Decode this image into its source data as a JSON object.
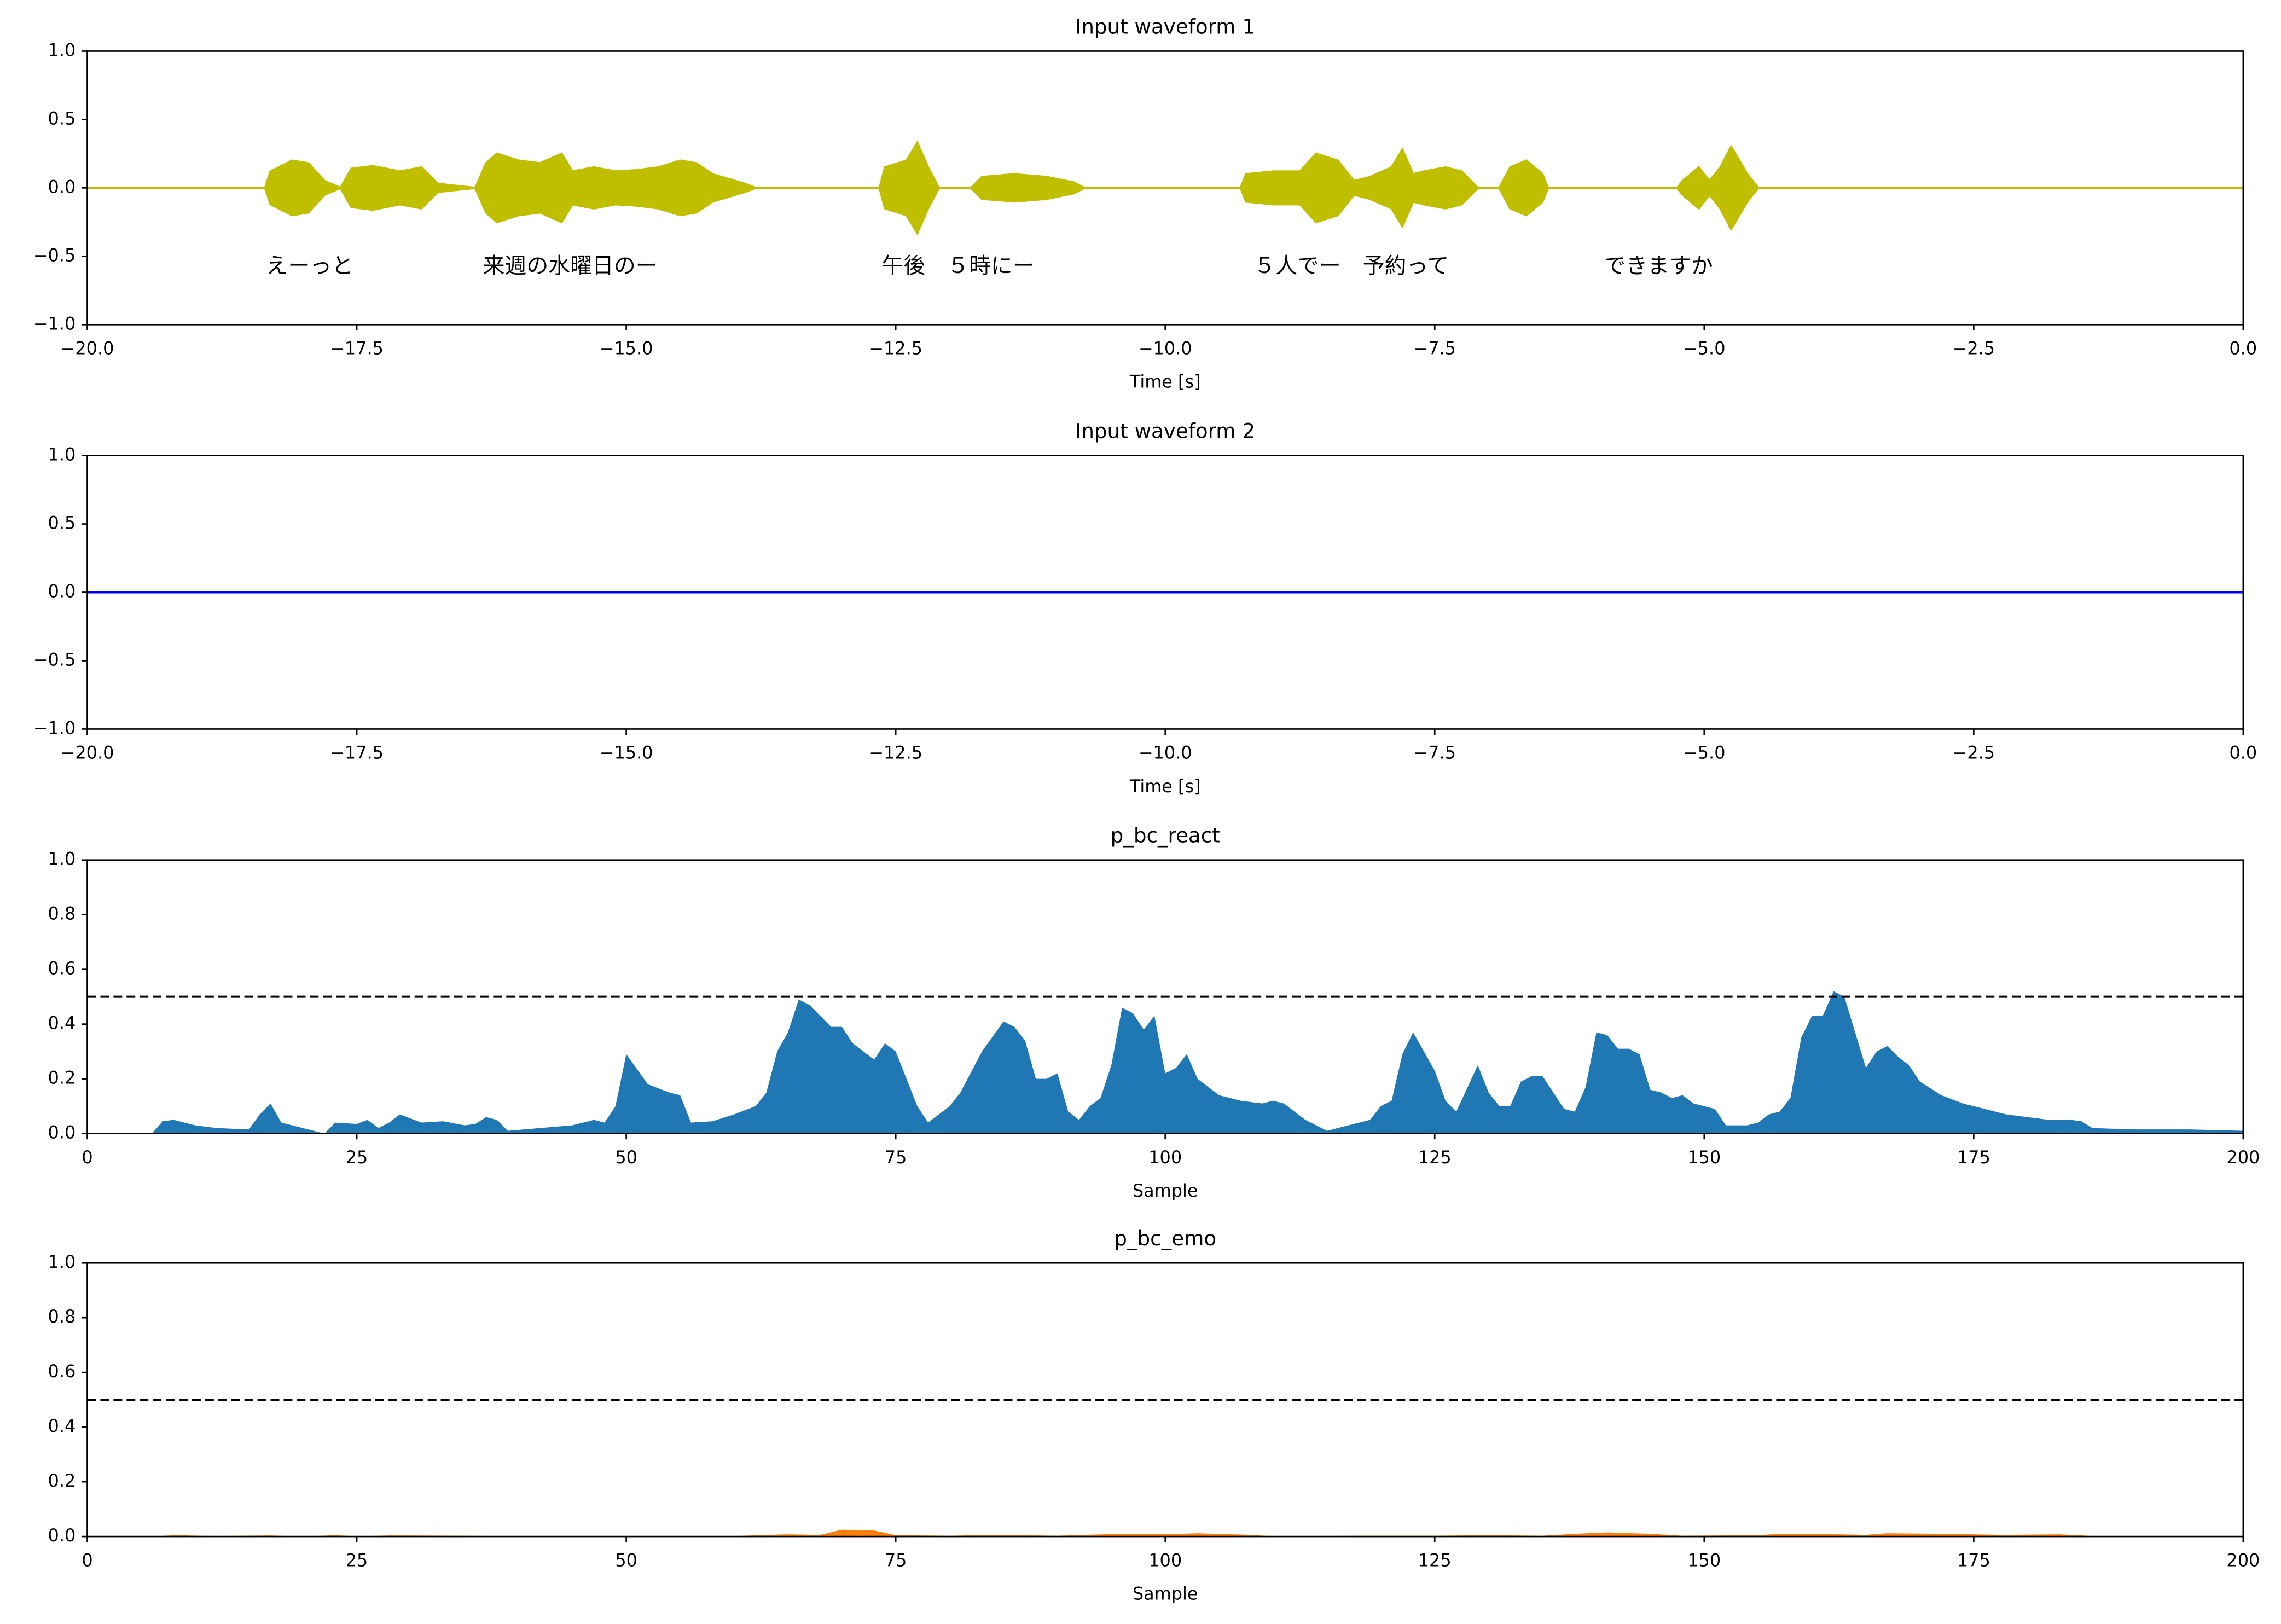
{
  "chart_data": [
    {
      "type": "waveform",
      "title": "Input waveform 1",
      "xlabel": "Time [s]",
      "color": "#bfbf00",
      "x": [
        -20,
        -18.35,
        -18.3,
        -18.1,
        -17.95,
        -17.8,
        -17.65,
        -17.55,
        -17.35,
        -17.1,
        -16.9,
        -16.75,
        -16.4,
        -16.3,
        -16.2,
        -16.0,
        -15.8,
        -15.6,
        -15.5,
        -15.3,
        -15.1,
        -14.9,
        -14.7,
        -14.5,
        -14.35,
        -14.2,
        -13.9,
        -13.8,
        -12.65,
        -12.6,
        -12.4,
        -12.3,
        -12.2,
        -12.1,
        -11.8,
        -11.7,
        -11.4,
        -11.1,
        -10.85,
        -10.75,
        -9.3,
        -9.25,
        -9.0,
        -8.75,
        -8.6,
        -8.4,
        -8.25,
        -8.1,
        -7.9,
        -7.8,
        -7.7,
        -7.6,
        -7.4,
        -7.25,
        -7.1,
        -6.9,
        -6.8,
        -6.65,
        -6.5,
        -6.45,
        -5.25,
        -5.2,
        -5.05,
        -4.95,
        -4.85,
        -4.75,
        -4.6,
        -4.5,
        0
      ],
      "values": [
        0,
        0,
        0.12,
        0.2,
        0.18,
        0.05,
        0,
        0.14,
        0.16,
        0.12,
        0.15,
        0.03,
        0,
        0.18,
        0.25,
        0.2,
        0.18,
        0.25,
        0.12,
        0.15,
        0.12,
        0.13,
        0.15,
        0.2,
        0.18,
        0.1,
        0.03,
        0,
        0,
        0.15,
        0.2,
        0.33,
        0.15,
        0,
        0,
        0.08,
        0.1,
        0.08,
        0.04,
        0,
        0,
        0.1,
        0.12,
        0.12,
        0.25,
        0.2,
        0.05,
        0.08,
        0.15,
        0.28,
        0.1,
        0.12,
        0.15,
        0.12,
        0,
        0,
        0.15,
        0.2,
        0.1,
        0,
        0,
        0.05,
        0.15,
        0.05,
        0.15,
        0.3,
        0.1,
        0,
        0
      ],
      "xlim": [
        -20,
        0
      ],
      "ylim": [
        -1,
        1
      ],
      "xticks": [
        {
          "value": -20,
          "label": "−20.0"
        },
        {
          "value": -17.5,
          "label": "−17.5"
        },
        {
          "value": -15,
          "label": "−15.0"
        },
        {
          "value": -12.5,
          "label": "−12.5"
        },
        {
          "value": -10,
          "label": "−10.0"
        },
        {
          "value": -7.5,
          "label": "−7.5"
        },
        {
          "value": -5,
          "label": "−5.0"
        },
        {
          "value": -2.5,
          "label": "−2.5"
        },
        {
          "value": 0,
          "label": "0.0"
        }
      ],
      "yticks": [
        {
          "value": -1,
          "label": "−1.0"
        },
        {
          "value": -0.5,
          "label": "−0.5"
        },
        {
          "value": 0,
          "label": "0.0"
        },
        {
          "value": 0.5,
          "label": "0.5"
        },
        {
          "value": 1,
          "label": "1.0"
        }
      ],
      "annotations": [
        {
          "text": "えーっと",
          "x": -18.34,
          "y": -0.58
        },
        {
          "text": "来週の水曜日のー",
          "x": -16.33,
          "y": -0.58
        },
        {
          "text": "午後　５時にー",
          "x": -12.63,
          "y": -0.58
        },
        {
          "text": "５人でー　予約って",
          "x": -9.18,
          "y": -0.58
        },
        {
          "text": "できますか",
          "x": -5.93,
          "y": -0.58
        }
      ]
    },
    {
      "type": "line",
      "title": "Input waveform 2",
      "xlabel": "Time [s]",
      "color": "#0000ff",
      "x": [
        -20,
        0
      ],
      "values": [
        0,
        0
      ],
      "xlim": [
        -20,
        0
      ],
      "ylim": [
        -1,
        1
      ],
      "xticks": [
        {
          "value": -20,
          "label": "−20.0"
        },
        {
          "value": -17.5,
          "label": "−17.5"
        },
        {
          "value": -15,
          "label": "−15.0"
        },
        {
          "value": -12.5,
          "label": "−12.5"
        },
        {
          "value": -10,
          "label": "−10.0"
        },
        {
          "value": -7.5,
          "label": "−7.5"
        },
        {
          "value": -5,
          "label": "−5.0"
        },
        {
          "value": -2.5,
          "label": "−2.5"
        },
        {
          "value": 0,
          "label": "0.0"
        }
      ],
      "yticks": [
        {
          "value": -1,
          "label": "−1.0"
        },
        {
          "value": -0.5,
          "label": "−0.5"
        },
        {
          "value": 0,
          "label": "0.0"
        },
        {
          "value": 0.5,
          "label": "0.5"
        },
        {
          "value": 1,
          "label": "1.0"
        }
      ]
    },
    {
      "type": "area",
      "title": "p_bc_react",
      "xlabel": "Sample",
      "color": "#1f77b4",
      "threshold": 0.5,
      "x": [
        0,
        6,
        7,
        8,
        10,
        12,
        15,
        16,
        17,
        18,
        20,
        21,
        22,
        23,
        25,
        26,
        27,
        28,
        29,
        31,
        33,
        35,
        36,
        37,
        38,
        39,
        42,
        45,
        47,
        48,
        49,
        50,
        52,
        54,
        55,
        56,
        58,
        60,
        62,
        63,
        64,
        65,
        66,
        67,
        69,
        70,
        71,
        73,
        74,
        75,
        76,
        77,
        78,
        79,
        80,
        81,
        83,
        85,
        86,
        87,
        88,
        89,
        90,
        91,
        92,
        93,
        94,
        95,
        96,
        97,
        98,
        99,
        100,
        101,
        102,
        103,
        105,
        107,
        109,
        110,
        111,
        113,
        115,
        117,
        119,
        120,
        121,
        122,
        123,
        125,
        126,
        127,
        129,
        130,
        131,
        132,
        133,
        134,
        135,
        136,
        137,
        138,
        139,
        140,
        141,
        142,
        143,
        144,
        145,
        146,
        147,
        148,
        149,
        150,
        151,
        152,
        154,
        155,
        156,
        157,
        158,
        159,
        160,
        161,
        162,
        163,
        164,
        165,
        166,
        167,
        168,
        169,
        170,
        172,
        174,
        176,
        178,
        180,
        182,
        184,
        185,
        186,
        190,
        195,
        200
      ],
      "values": [
        0,
        0,
        0.045,
        0.05,
        0.03,
        0.02,
        0.015,
        0.07,
        0.11,
        0.04,
        0.02,
        0.01,
        0,
        0.04,
        0.035,
        0.05,
        0.02,
        0.04,
        0.07,
        0.04,
        0.045,
        0.03,
        0.035,
        0.06,
        0.05,
        0.01,
        0.02,
        0.03,
        0.05,
        0.04,
        0.1,
        0.29,
        0.18,
        0.15,
        0.14,
        0.04,
        0.045,
        0.07,
        0.1,
        0.15,
        0.3,
        0.37,
        0.49,
        0.47,
        0.39,
        0.39,
        0.33,
        0.27,
        0.33,
        0.3,
        0.2,
        0.1,
        0.04,
        0.07,
        0.1,
        0.15,
        0.3,
        0.41,
        0.39,
        0.34,
        0.2,
        0.2,
        0.22,
        0.08,
        0.05,
        0.1,
        0.13,
        0.25,
        0.46,
        0.44,
        0.38,
        0.43,
        0.22,
        0.24,
        0.29,
        0.2,
        0.14,
        0.12,
        0.11,
        0.12,
        0.11,
        0.05,
        0.01,
        0.03,
        0.05,
        0.1,
        0.12,
        0.29,
        0.37,
        0.23,
        0.12,
        0.08,
        0.25,
        0.15,
        0.1,
        0.1,
        0.19,
        0.21,
        0.21,
        0.15,
        0.09,
        0.08,
        0.17,
        0.37,
        0.36,
        0.31,
        0.31,
        0.29,
        0.16,
        0.15,
        0.13,
        0.14,
        0.11,
        0.1,
        0.09,
        0.03,
        0.03,
        0.04,
        0.07,
        0.08,
        0.13,
        0.35,
        0.43,
        0.43,
        0.52,
        0.5,
        0.37,
        0.24,
        0.3,
        0.32,
        0.28,
        0.25,
        0.19,
        0.14,
        0.11,
        0.09,
        0.07,
        0.06,
        0.05,
        0.05,
        0.045,
        0.02,
        0.015,
        0.015,
        0.01
      ],
      "xlim": [
        0,
        200
      ],
      "ylim": [
        0,
        1
      ],
      "xticks": [
        0,
        25,
        50,
        75,
        100,
        125,
        150,
        175,
        200
      ],
      "yticks": [
        {
          "value": 0,
          "label": "0.0"
        },
        {
          "value": 0.2,
          "label": "0.2"
        },
        {
          "value": 0.4,
          "label": "0.4"
        },
        {
          "value": 0.6,
          "label": "0.6"
        },
        {
          "value": 0.8,
          "label": "0.8"
        },
        {
          "value": 1,
          "label": "1.0"
        }
      ]
    },
    {
      "type": "area",
      "title": "p_bc_emo",
      "xlabel": "Sample",
      "color": "#ff7f0e",
      "threshold": 0.5,
      "x": [
        0,
        6,
        8,
        12,
        17,
        20,
        23,
        25,
        28,
        35,
        40,
        60,
        65,
        68,
        70,
        73,
        75,
        80,
        84,
        90,
        96,
        100,
        103,
        108,
        110,
        118,
        125,
        130,
        135,
        138,
        141,
        145,
        148,
        155,
        157,
        160,
        165,
        167,
        172,
        178,
        183,
        186,
        200
      ],
      "values": [
        0,
        0,
        0.005,
        0.002,
        0.004,
        0,
        0.005,
        0.001,
        0.004,
        0.003,
        0.001,
        0.002,
        0.008,
        0.006,
        0.025,
        0.022,
        0.005,
        0.003,
        0.006,
        0.003,
        0.01,
        0.008,
        0.012,
        0.006,
        0.001,
        0.003,
        0.003,
        0.005,
        0.003,
        0.01,
        0.015,
        0.01,
        0.003,
        0.005,
        0.01,
        0.01,
        0.006,
        0.012,
        0.01,
        0.006,
        0.008,
        0.002,
        0
      ],
      "xlim": [
        0,
        200
      ],
      "ylim": [
        0,
        1
      ],
      "xticks": [
        0,
        25,
        50,
        75,
        100,
        125,
        150,
        175,
        200
      ],
      "yticks": [
        {
          "value": 0,
          "label": "0.0"
        },
        {
          "value": 0.2,
          "label": "0.2"
        },
        {
          "value": 0.4,
          "label": "0.4"
        },
        {
          "value": 0.6,
          "label": "0.6"
        },
        {
          "value": 0.8,
          "label": "0.8"
        },
        {
          "value": 1,
          "label": "1.0"
        }
      ]
    }
  ]
}
